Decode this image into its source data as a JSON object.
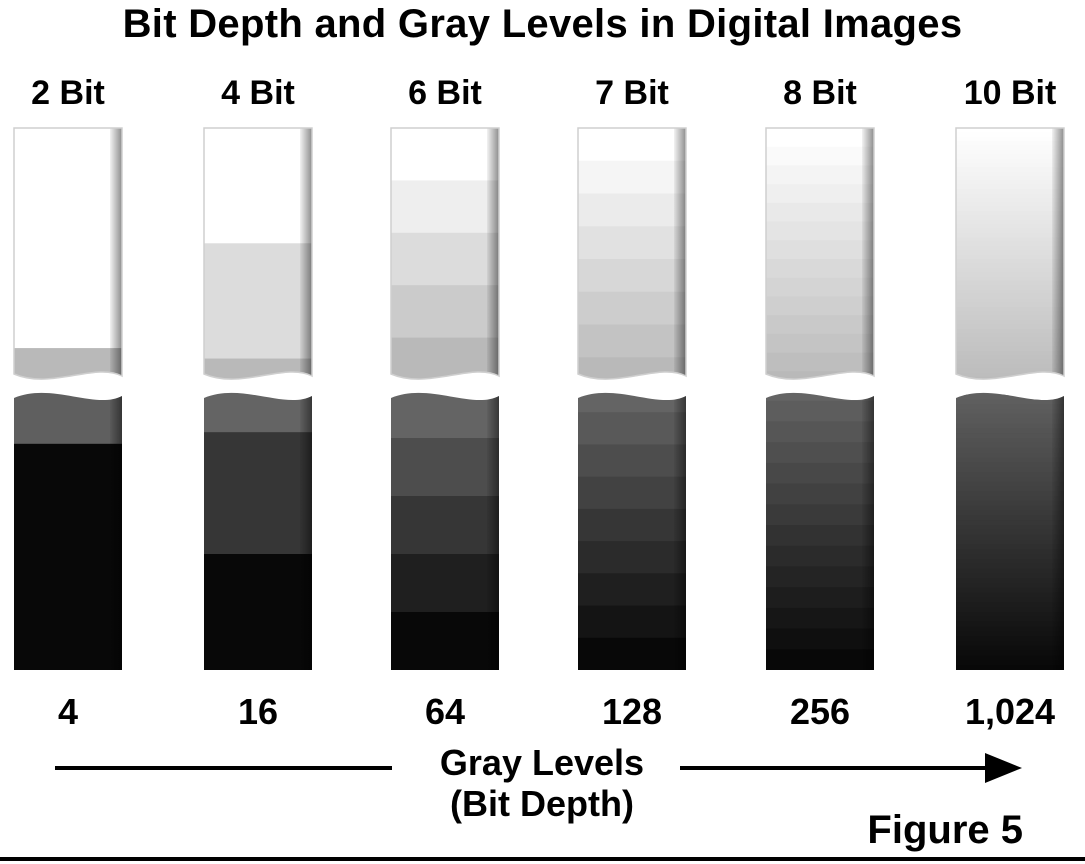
{
  "title": "Bit Depth and Gray Levels in Digital Images",
  "columns": [
    {
      "bit_label": "2 Bit",
      "levels_label": "4",
      "top_steps": 2,
      "bottom_steps": 2
    },
    {
      "bit_label": "4 Bit",
      "levels_label": "16",
      "top_steps": 3,
      "bottom_steps": 3
    },
    {
      "bit_label": "6 Bit",
      "levels_label": "64",
      "top_steps": 5,
      "bottom_steps": 5
    },
    {
      "bit_label": "7 Bit",
      "levels_label": "128",
      "top_steps": 8,
      "bottom_steps": 9
    },
    {
      "bit_label": "8 Bit",
      "levels_label": "256",
      "top_steps": 14,
      "bottom_steps": 14
    },
    {
      "bit_label": "10 Bit",
      "levels_label": "1,024",
      "top_steps": 60,
      "bottom_steps": 60
    }
  ],
  "axis": {
    "line1": "Gray Levels",
    "line2": "(Bit Depth)"
  },
  "figure_label": "Figure 5",
  "colors": {
    "background": "#ffffff",
    "text": "#000000",
    "arrow": "#000000"
  }
}
